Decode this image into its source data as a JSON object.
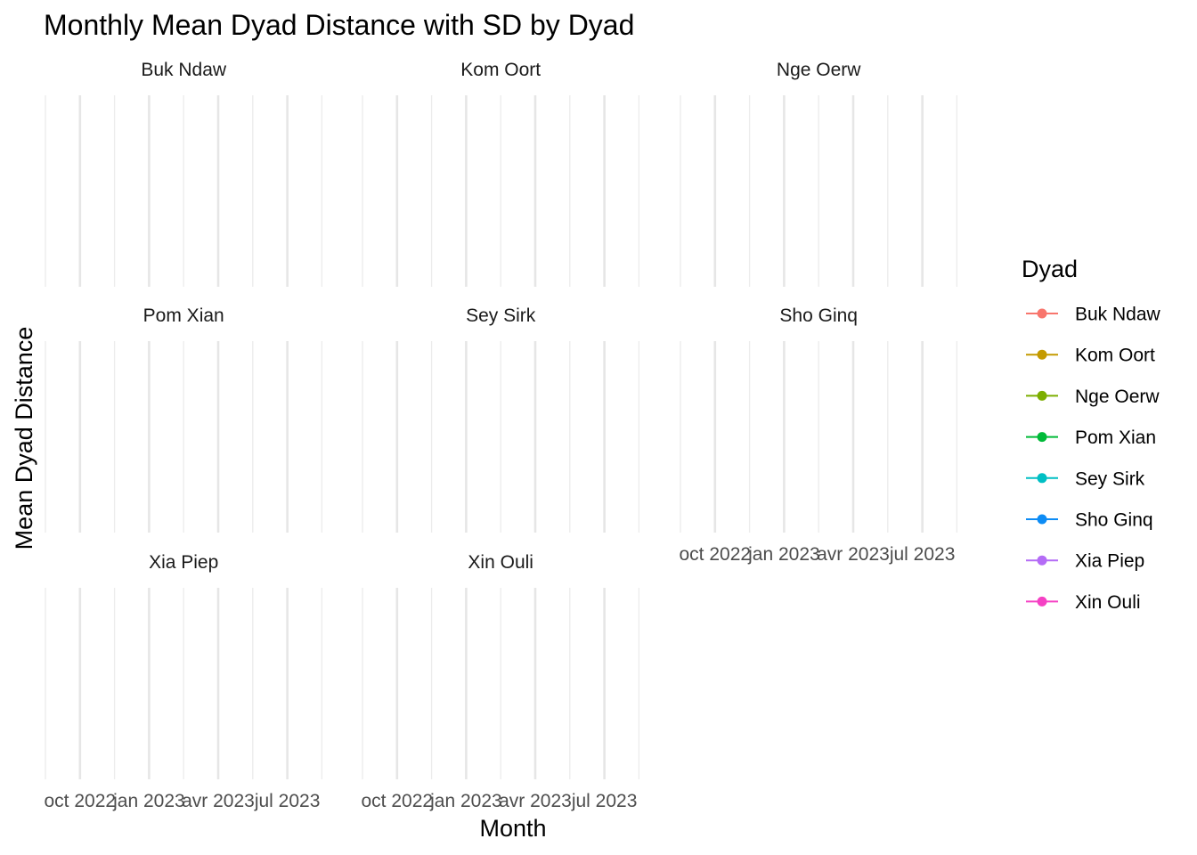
{
  "chart_data": {
    "type": "line",
    "title": "Monthly Mean Dyad Distance with SD by Dyad",
    "xlabel": "Month",
    "ylabel": "Mean Dyad Distance",
    "x_tick_labels": [
      "oct 2022",
      "jan 2023",
      "avr 2023",
      "jul 2023"
    ],
    "grid": true,
    "legend": {
      "title": "Dyad",
      "placement": "right",
      "entries": [
        {
          "name": "Buk Ndaw",
          "color": "#F8766D"
        },
        {
          "name": "Kom Oort",
          "color": "#C49A00"
        },
        {
          "name": "Nge Oerw",
          "color": "#7CAE00"
        },
        {
          "name": "Pom Xian",
          "color": "#00BA38"
        },
        {
          "name": "Sey Sirk",
          "color": "#00BFC4"
        },
        {
          "name": "Sho Ginq",
          "color": "#0D8CF5"
        },
        {
          "name": "Xia Piep",
          "color": "#B46CF6"
        },
        {
          "name": "Xin Ouli",
          "color": "#F541C4"
        }
      ]
    },
    "facets": [
      {
        "name": "Buk Ndaw",
        "values": []
      },
      {
        "name": "Kom Oort",
        "values": []
      },
      {
        "name": "Nge Oerw",
        "values": []
      },
      {
        "name": "Pom Xian",
        "values": []
      },
      {
        "name": "Sey Sirk",
        "values": []
      },
      {
        "name": "Sho Ginq",
        "values": []
      },
      {
        "name": "Xia Piep",
        "values": []
      },
      {
        "name": "Xin Ouli",
        "values": []
      }
    ]
  }
}
